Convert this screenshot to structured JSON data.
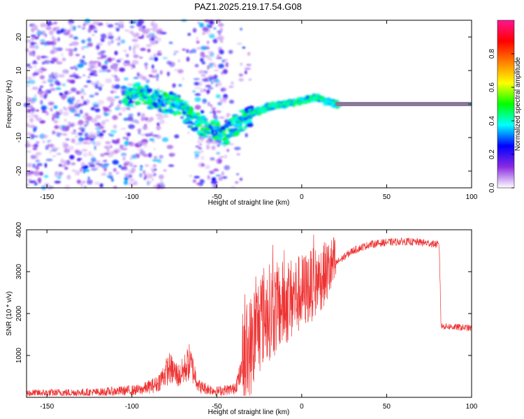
{
  "page_title": "PAZ1.2025.219.17.54.G08",
  "chart_data": [
    {
      "type": "heatmap",
      "title": "PAZ1.2025.219.17.54.G08",
      "xlabel": "Height of straight line (km)",
      "ylabel": "Frequency (Hz)",
      "xlim": [
        -162,
        100
      ],
      "ylim": [
        -25,
        25
      ],
      "xticks": [
        -150,
        -100,
        -50,
        0,
        50,
        100
      ],
      "yticks": [
        -20,
        -10,
        0,
        10,
        20
      ],
      "colorbar": {
        "label": "Normalized spectral amplitude",
        "range": [
          0,
          1
        ],
        "ticks": [
          "0.0",
          "0.2",
          "0.4",
          "0.6",
          "0.8"
        ],
        "colors": [
          "#ffffff",
          "#8a2be2",
          "#0000ff",
          "#00ffff",
          "#00ff00",
          "#ffff00",
          "#ff8000",
          "#ff0000",
          "#ff1493"
        ]
      },
      "signal_trace": [
        {
          "x": -105,
          "y": 2
        },
        {
          "x": -95,
          "y": 3
        },
        {
          "x": -85,
          "y": 1
        },
        {
          "x": -75,
          "y": 0
        },
        {
          "x": -65,
          "y": -4
        },
        {
          "x": -55,
          "y": -8
        },
        {
          "x": -45,
          "y": -9
        },
        {
          "x": -38,
          "y": -6
        },
        {
          "x": -30,
          "y": -3
        },
        {
          "x": -20,
          "y": -1
        },
        {
          "x": -10,
          "y": 0
        },
        {
          "x": 0,
          "y": 1
        },
        {
          "x": 8,
          "y": 2
        },
        {
          "x": 20,
          "y": 0
        },
        {
          "x": 100,
          "y": 0
        }
      ],
      "constant_tone": {
        "x_start": 20,
        "x_end": 100,
        "frequency": 0,
        "amplitude": 1.0
      },
      "noise_region": {
        "x_start": -162,
        "x_end": -30
      }
    },
    {
      "type": "line",
      "xlabel": "Height of straight line (km)",
      "ylabel": "SNR (10 * v/v)",
      "xlim": [
        -162,
        100
      ],
      "ylim": [
        0,
        4000
      ],
      "xticks": [
        -150,
        -100,
        -50,
        0,
        50,
        100
      ],
      "yticks": [
        1000,
        2000,
        3000,
        4000
      ],
      "series": [
        {
          "color": "#ee3333",
          "envelope": [
            {
              "x": -162,
              "y": 100
            },
            {
              "x": -120,
              "y": 120
            },
            {
              "x": -95,
              "y": 180
            },
            {
              "x": -85,
              "y": 320
            },
            {
              "x": -78,
              "y": 700
            },
            {
              "x": -72,
              "y": 500
            },
            {
              "x": -66,
              "y": 850
            },
            {
              "x": -60,
              "y": 250
            },
            {
              "x": -50,
              "y": 150
            },
            {
              "x": -40,
              "y": 200
            },
            {
              "x": -33,
              "y": 800
            },
            {
              "x": -27,
              "y": 1600
            },
            {
              "x": -22,
              "y": 2000
            },
            {
              "x": -15,
              "y": 2100
            },
            {
              "x": -8,
              "y": 2300
            },
            {
              "x": 0,
              "y": 2500
            },
            {
              "x": 10,
              "y": 2800
            },
            {
              "x": 20,
              "y": 3200
            },
            {
              "x": 30,
              "y": 3500
            },
            {
              "x": 40,
              "y": 3650
            },
            {
              "x": 50,
              "y": 3700
            },
            {
              "x": 60,
              "y": 3720
            },
            {
              "x": 70,
              "y": 3700
            },
            {
              "x": 80,
              "y": 3650
            },
            {
              "x": 81,
              "y": 3600
            },
            {
              "x": 82,
              "y": 1700
            },
            {
              "x": 90,
              "y": 1680
            },
            {
              "x": 100,
              "y": 1650
            }
          ]
        }
      ]
    }
  ]
}
